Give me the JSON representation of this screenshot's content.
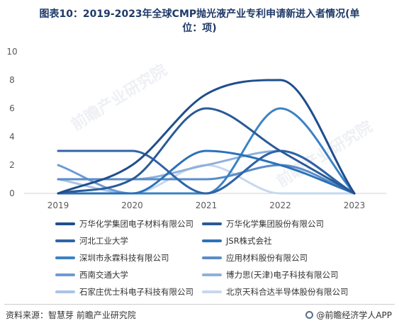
{
  "title": [
    "图表10：2019-2023年全球CMP抛光液产业专利申请新进入者情况(单",
    "位：项)"
  ],
  "source": "资料来源：智慧芽 前瞻产业研究院",
  "brand": "@前瞻经济学人APP",
  "watermark": "前瞻产业研究院",
  "chart_data": {
    "type": "line",
    "x": [
      "2019",
      "2020",
      "2021",
      "2022",
      "2023"
    ],
    "ylim": [
      0,
      10
    ],
    "yticks": [
      0,
      2,
      4,
      6,
      8,
      10
    ],
    "grid": false,
    "legend_position": "bottom",
    "series": [
      {
        "name": "万华化学集团电子材料有限公司",
        "color": "#1f4e8c",
        "values": [
          0,
          2,
          7,
          8,
          0
        ]
      },
      {
        "name": "万华化学集团股份有限公司",
        "color": "#2a5a96",
        "values": [
          0,
          1,
          6,
          3,
          0
        ]
      },
      {
        "name": "河北工业大学",
        "color": "#2f64a6",
        "values": [
          3,
          3,
          0,
          3,
          0
        ]
      },
      {
        "name": "JSR株式会社",
        "color": "#2b72b8",
        "values": [
          0,
          0,
          3,
          2,
          0
        ]
      },
      {
        "name": "深圳市永霖科技有限公司",
        "color": "#3b82c4",
        "values": [
          0,
          0,
          0,
          6,
          0
        ]
      },
      {
        "name": "应用材料股份有限公司",
        "color": "#5a8cc8",
        "values": [
          1,
          1,
          1,
          2,
          0
        ]
      },
      {
        "name": "西南交通大学",
        "color": "#6f9ad4",
        "values": [
          2,
          0,
          0,
          3,
          0
        ]
      },
      {
        "name": "博力思(天津)电子科技有限公司",
        "color": "#8fb0dc",
        "values": [
          1,
          1,
          2,
          3,
          0
        ]
      },
      {
        "name": "石家庄优士科电子科技有限公司",
        "color": "#aac4e6",
        "values": [
          1,
          0,
          0,
          3,
          0
        ]
      },
      {
        "name": "北京天科合达半导体股份有限公司",
        "color": "#c6d8ee",
        "values": [
          0,
          0,
          2,
          0,
          0
        ]
      }
    ]
  }
}
